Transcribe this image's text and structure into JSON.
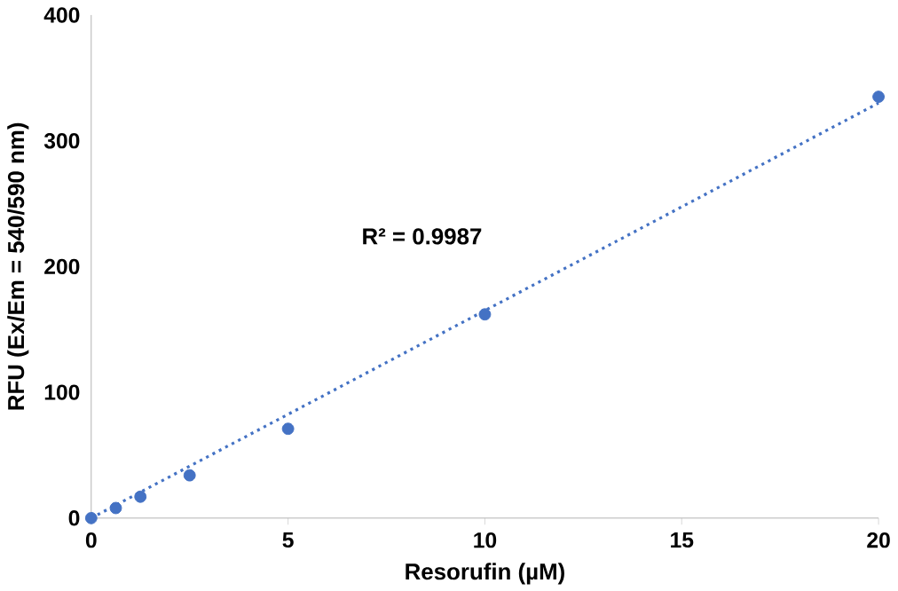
{
  "chart_data": {
    "type": "scatter",
    "xlabel": "Resorufin (µM)",
    "ylabel": "RFU (Ex/Em = 540/590 nm)",
    "xlim": [
      0,
      20
    ],
    "ylim": [
      0,
      400
    ],
    "xticks": [
      0,
      5,
      10,
      15,
      20
    ],
    "yticks": [
      0,
      100,
      200,
      300,
      400
    ],
    "grid": false,
    "series": [
      {
        "color": "#4472c4",
        "marker": "circle",
        "x": [
          0,
          0.625,
          1.25,
          2.5,
          5,
          10,
          20
        ],
        "values": [
          0,
          8,
          17,
          34,
          71,
          162,
          335
        ]
      },
      {
        "type": "line",
        "color": "#4472c4",
        "line_style": "dotted",
        "marker": "none",
        "x": [
          0,
          20
        ],
        "values": [
          0,
          330
        ]
      }
    ],
    "annotations": [
      "R² = 0.9987"
    ]
  }
}
